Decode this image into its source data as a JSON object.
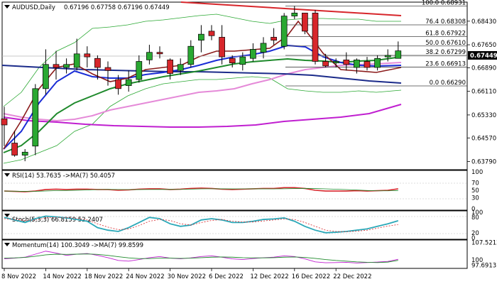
{
  "title": "AUDUSD,Daily",
  "ohlc_text": "0.67196 0.67758 0.67196 0.67449",
  "current_price": "0.67449",
  "colors": {
    "up": "#2aa832",
    "down": "#d7262b",
    "frame": "#000000",
    "grid": "#c8c8c8",
    "price_tag": "#000000"
  },
  "price_axis": [
    "0.68430",
    "0.67650",
    "0.66890",
    "0.66110",
    "0.65330",
    "0.64570",
    "0.63790"
  ],
  "fibo_levels": [
    {
      "label": "100.0 0.68931",
      "value": 0.68931
    },
    {
      "label": "76.4 0.68308",
      "value": 0.68308
    },
    {
      "label": "61.8 0.67922",
      "value": 0.67922
    },
    {
      "label": "50.0 0.67610",
      "value": 0.6761
    },
    {
      "label": "38.2 0.67299",
      "value": 0.67299
    },
    {
      "label": "23.6 0.66913",
      "value": 0.66913
    },
    {
      "label": "0.0 0.66290",
      "value": 0.6629
    }
  ],
  "x_labels": [
    "8 Nov 2022",
    "14 Nov 2022",
    "18 Nov 2022",
    "24 Nov 2022",
    "30 Nov 2022",
    "6 Dec 2022",
    "12 Dec 2022",
    "16 Dec 2022",
    "22 Dec 2022"
  ],
  "rsi": {
    "label": "RSI(14) 53.7635 ->MA(7) 50.4057",
    "axis": [
      "100",
      "70",
      "50",
      "30",
      "0"
    ]
  },
  "stoch": {
    "label": "Stoch(5,3,3) 66.8159 52.2407",
    "axis": [
      "100",
      "80",
      "20",
      "0"
    ]
  },
  "momentum": {
    "label": "Momentum(14) 100.3049 ->MA(7) 99.8599",
    "axis": [
      "107.5212",
      "100",
      "97.6913"
    ]
  },
  "chart_data": {
    "type": "candlestick",
    "title": "AUDUSD,Daily",
    "ylim": [
      0.6352,
      0.6906
    ],
    "candles": [
      {
        "o": 0.652,
        "h": 0.656,
        "l": 0.643,
        "c": 0.65
      },
      {
        "o": 0.644,
        "h": 0.648,
        "l": 0.6395,
        "c": 0.64
      },
      {
        "o": 0.64,
        "h": 0.642,
        "l": 0.638,
        "c": 0.641
      },
      {
        "o": 0.643,
        "h": 0.6635,
        "l": 0.64,
        "c": 0.662
      },
      {
        "o": 0.662,
        "h": 0.675,
        "l": 0.66,
        "c": 0.67
      },
      {
        "o": 0.67,
        "h": 0.6745,
        "l": 0.665,
        "c": 0.669
      },
      {
        "o": 0.669,
        "h": 0.672,
        "l": 0.667,
        "c": 0.67
      },
      {
        "o": 0.669,
        "h": 0.6785,
        "l": 0.668,
        "c": 0.6735
      },
      {
        "o": 0.6735,
        "h": 0.676,
        "l": 0.669,
        "c": 0.6725
      },
      {
        "o": 0.672,
        "h": 0.673,
        "l": 0.665,
        "c": 0.669
      },
      {
        "o": 0.669,
        "h": 0.671,
        "l": 0.663,
        "c": 0.668
      },
      {
        "o": 0.665,
        "h": 0.6665,
        "l": 0.66,
        "c": 0.662
      },
      {
        "o": 0.663,
        "h": 0.668,
        "l": 0.661,
        "c": 0.665
      },
      {
        "o": 0.665,
        "h": 0.673,
        "l": 0.664,
        "c": 0.671
      },
      {
        "o": 0.6715,
        "h": 0.6765,
        "l": 0.67,
        "c": 0.674
      },
      {
        "o": 0.674,
        "h": 0.676,
        "l": 0.672,
        "c": 0.6735
      },
      {
        "o": 0.6715,
        "h": 0.672,
        "l": 0.665,
        "c": 0.667
      },
      {
        "o": 0.668,
        "h": 0.672,
        "l": 0.6665,
        "c": 0.67
      },
      {
        "o": 0.67,
        "h": 0.678,
        "l": 0.669,
        "c": 0.676
      },
      {
        "o": 0.678,
        "h": 0.683,
        "l": 0.674,
        "c": 0.68
      },
      {
        "o": 0.681,
        "h": 0.683,
        "l": 0.678,
        "c": 0.6795
      },
      {
        "o": 0.679,
        "h": 0.683,
        "l": 0.67,
        "c": 0.6725
      },
      {
        "o": 0.672,
        "h": 0.673,
        "l": 0.669,
        "c": 0.6705
      },
      {
        "o": 0.67,
        "h": 0.674,
        "l": 0.668,
        "c": 0.6725
      },
      {
        "o": 0.672,
        "h": 0.677,
        "l": 0.671,
        "c": 0.675
      },
      {
        "o": 0.674,
        "h": 0.679,
        "l": 0.672,
        "c": 0.677
      },
      {
        "o": 0.679,
        "h": 0.682,
        "l": 0.6765,
        "c": 0.678
      },
      {
        "o": 0.676,
        "h": 0.687,
        "l": 0.675,
        "c": 0.686
      },
      {
        "o": 0.686,
        "h": 0.6893,
        "l": 0.685,
        "c": 0.687
      },
      {
        "o": 0.687,
        "h": 0.687,
        "l": 0.68,
        "c": 0.681
      },
      {
        "o": 0.687,
        "h": 0.688,
        "l": 0.67,
        "c": 0.671
      },
      {
        "o": 0.671,
        "h": 0.6735,
        "l": 0.669,
        "c": 0.6695
      },
      {
        "o": 0.6705,
        "h": 0.672,
        "l": 0.669,
        "c": 0.671
      },
      {
        "o": 0.6715,
        "h": 0.674,
        "l": 0.668,
        "c": 0.67
      },
      {
        "o": 0.669,
        "h": 0.672,
        "l": 0.667,
        "c": 0.6715
      },
      {
        "o": 0.671,
        "h": 0.6725,
        "l": 0.668,
        "c": 0.669
      },
      {
        "o": 0.669,
        "h": 0.673,
        "l": 0.668,
        "c": 0.672
      },
      {
        "o": 0.6725,
        "h": 0.675,
        "l": 0.671,
        "c": 0.673
      },
      {
        "o": 0.672,
        "h": 0.6776,
        "l": 0.672,
        "c": 0.6745
      }
    ],
    "indicators": {
      "rsi": {
        "values": [
          48,
          47,
          46,
          48,
          52,
          53,
          52,
          53,
          53,
          52,
          52,
          50,
          51,
          53,
          54,
          54,
          52,
          53,
          55,
          56,
          55,
          53,
          52,
          53,
          54,
          55,
          55,
          57,
          57,
          55,
          50,
          48,
          48,
          48,
          49,
          48,
          49,
          50,
          54
        ]
      },
      "stoch": {
        "k": [
          80,
          70,
          60,
          75,
          85,
          82,
          78,
          72,
          65,
          40,
          30,
          25,
          40,
          60,
          80,
          75,
          55,
          45,
          50,
          70,
          75,
          70,
          60,
          60,
          65,
          72,
          74,
          78,
          65,
          45,
          30,
          20,
          22,
          25,
          30,
          35,
          45,
          55,
          67
        ],
        "d": [
          75,
          72,
          68,
          70,
          78,
          80,
          79,
          76,
          70,
          55,
          42,
          32,
          35,
          48,
          65,
          72,
          68,
          55,
          50,
          60,
          68,
          72,
          65,
          62,
          62,
          66,
          70,
          74,
          72,
          60,
          45,
          30,
          25,
          24,
          26,
          30,
          38,
          46,
          52
        ]
      },
      "momentum": {
        "values": [
          100.5,
          100.8,
          101.2,
          102.5,
          103.8,
          103.0,
          102.0,
          102.5,
          102.8,
          102.0,
          101.0,
          99.8,
          99.5,
          100.2,
          101.0,
          101.5,
          100.8,
          100.5,
          100.9,
          101.5,
          101.8,
          101.2,
          100.5,
          100.2,
          100.6,
          101.0,
          101.2,
          101.8,
          101.5,
          100.5,
          99.2,
          98.8,
          98.9,
          99.0,
          98.7,
          98.9,
          99.1,
          99.4,
          100.3
        ],
        "ma": [
          100.8,
          100.9,
          101.1,
          101.6,
          102.2,
          102.5,
          102.4,
          102.5,
          102.6,
          102.4,
          102.0,
          101.4,
          100.9,
          100.6,
          100.6,
          100.8,
          100.8,
          100.7,
          100.8,
          101.0,
          101.2,
          101.3,
          101.2,
          101.0,
          100.9,
          100.9,
          101.0,
          101.2,
          101.3,
          101.1,
          100.7,
          100.2,
          99.8,
          99.5,
          99.2,
          99.0,
          98.9,
          99.1,
          99.86
        ]
      }
    }
  }
}
